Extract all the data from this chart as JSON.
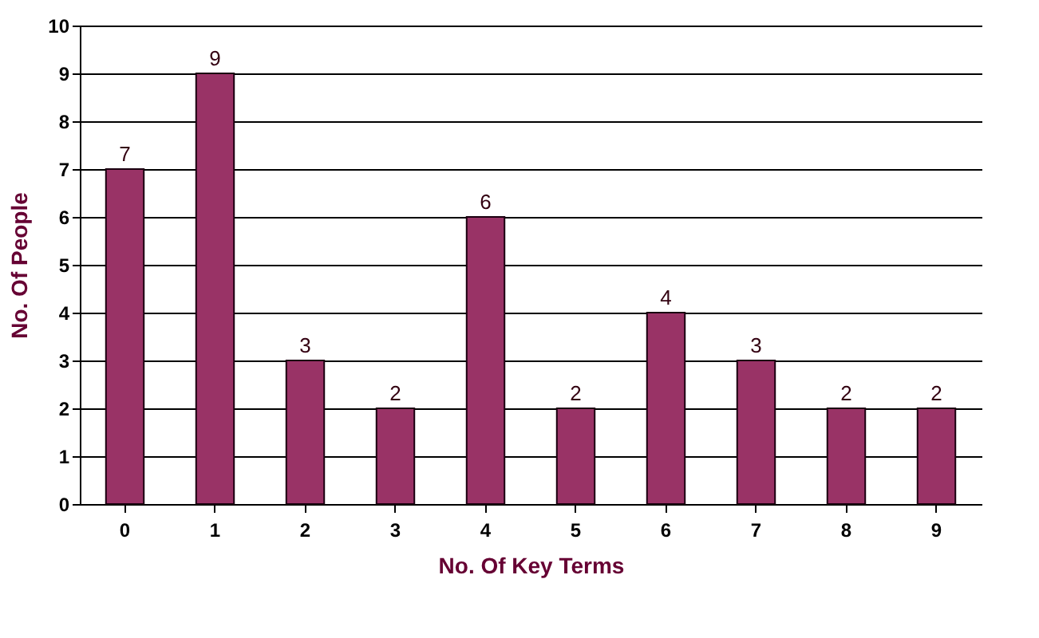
{
  "chart_data": {
    "type": "bar",
    "xlabel": "No. Of Key Terms",
    "ylabel": "No. Of People",
    "categories": [
      "0",
      "1",
      "2",
      "3",
      "4",
      "5",
      "6",
      "7",
      "8",
      "9"
    ],
    "values": [
      7,
      9,
      3,
      2,
      6,
      2,
      4,
      3,
      2,
      2
    ],
    "color": "#993366",
    "ylim": [
      0,
      10
    ],
    "yticks": [
      0,
      1,
      2,
      3,
      4,
      5,
      6,
      7,
      8,
      9,
      10
    ],
    "grid": "y",
    "data_labels": true
  }
}
